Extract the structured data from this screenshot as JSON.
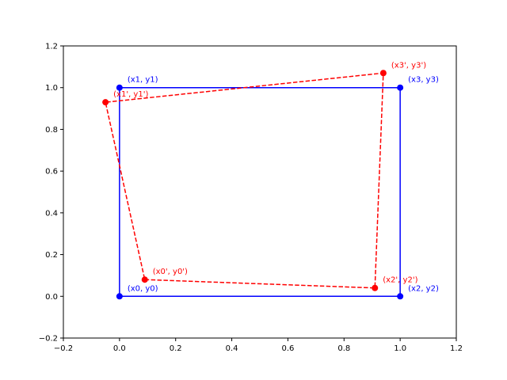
{
  "chart_data": {
    "type": "line",
    "title": "",
    "xlabel": "",
    "ylabel": "",
    "xlim": [
      -0.2,
      1.2
    ],
    "ylim": [
      -0.2,
      1.2
    ],
    "xticks": [
      -0.2,
      0.0,
      0.2,
      0.4,
      0.6,
      0.8,
      1.0,
      1.2
    ],
    "yticks": [
      -0.2,
      0.0,
      0.2,
      0.4,
      0.6,
      0.8,
      1.0,
      1.2
    ],
    "xtick_labels": [
      "−0.2",
      "0.0",
      "0.2",
      "0.4",
      "0.6",
      "0.8",
      "1.0",
      "1.2"
    ],
    "ytick_labels": [
      "−0.2",
      "0.0",
      "0.2",
      "0.4",
      "0.6",
      "0.8",
      "1.0",
      "1.2"
    ],
    "grid": false,
    "series": [
      {
        "key": "original",
        "color": "#0000ff",
        "line_style": "solid",
        "closed": true,
        "points": [
          {
            "x": 0.0,
            "y": 0.0,
            "label": "(x0, y0)"
          },
          {
            "x": 1.0,
            "y": 0.0,
            "label": "(x2, y2)"
          },
          {
            "x": 1.0,
            "y": 1.0,
            "label": "(x3, y3)"
          },
          {
            "x": 0.0,
            "y": 1.0,
            "label": "(x1, y1)"
          }
        ]
      },
      {
        "key": "transformed",
        "color": "#ff0000",
        "line_style": "dashed",
        "closed": true,
        "points": [
          {
            "x": 0.09,
            "y": 0.08,
            "label": "(x0', y0')"
          },
          {
            "x": 0.91,
            "y": 0.04,
            "label": "(x2', y2')"
          },
          {
            "x": 0.94,
            "y": 1.07,
            "label": "(x3', y3')"
          },
          {
            "x": -0.05,
            "y": 0.93,
            "label": "(x1', y1')"
          }
        ]
      }
    ]
  }
}
